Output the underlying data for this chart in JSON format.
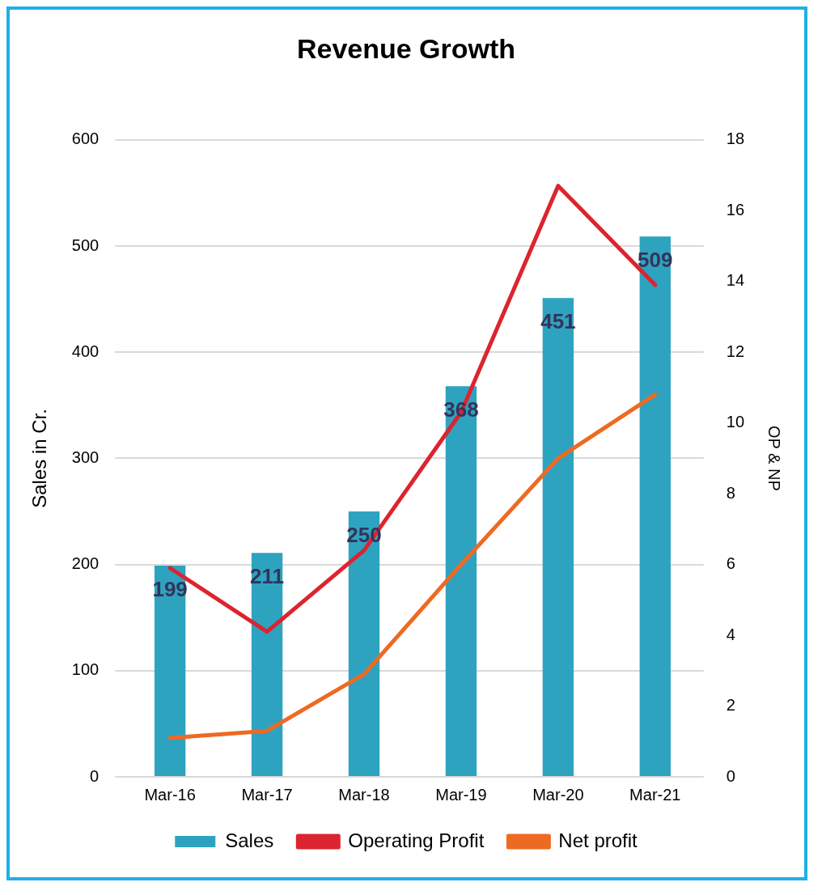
{
  "chart_data": {
    "type": "bar",
    "title": "Revenue Growth",
    "ylabel": "Sales in Cr.",
    "y2label": "OP & NP",
    "categories": [
      "Mar-16",
      "Mar-17",
      "Mar-18",
      "Mar-19",
      "Mar-20",
      "Mar-21"
    ],
    "series": [
      {
        "name": "Sales",
        "color": "#2ea3c0",
        "values": [
          199,
          211,
          250,
          368,
          451,
          509
        ],
        "data_labels": true
      },
      {
        "name": "Operating Profit",
        "type": "line",
        "axis": "y2",
        "color": "#dc2430",
        "values": [
          5.9,
          4.1,
          6.4,
          10.3,
          16.7,
          13.9
        ]
      },
      {
        "name": "Net profit",
        "type": "line",
        "axis": "y2",
        "color": "#ee6a22",
        "values": [
          1.1,
          1.3,
          2.9,
          6.0,
          9.0,
          10.8
        ]
      }
    ],
    "ylim": [
      0,
      600
    ],
    "yticks": [
      0,
      100,
      200,
      300,
      400,
      500,
      600
    ],
    "y2lim": [
      0,
      18
    ],
    "y2ticks": [
      0,
      2,
      4,
      6,
      8,
      10,
      12,
      14,
      16,
      18
    ],
    "grid": "y",
    "legend": "bottom",
    "marker": "none",
    "line_style": "solid"
  }
}
